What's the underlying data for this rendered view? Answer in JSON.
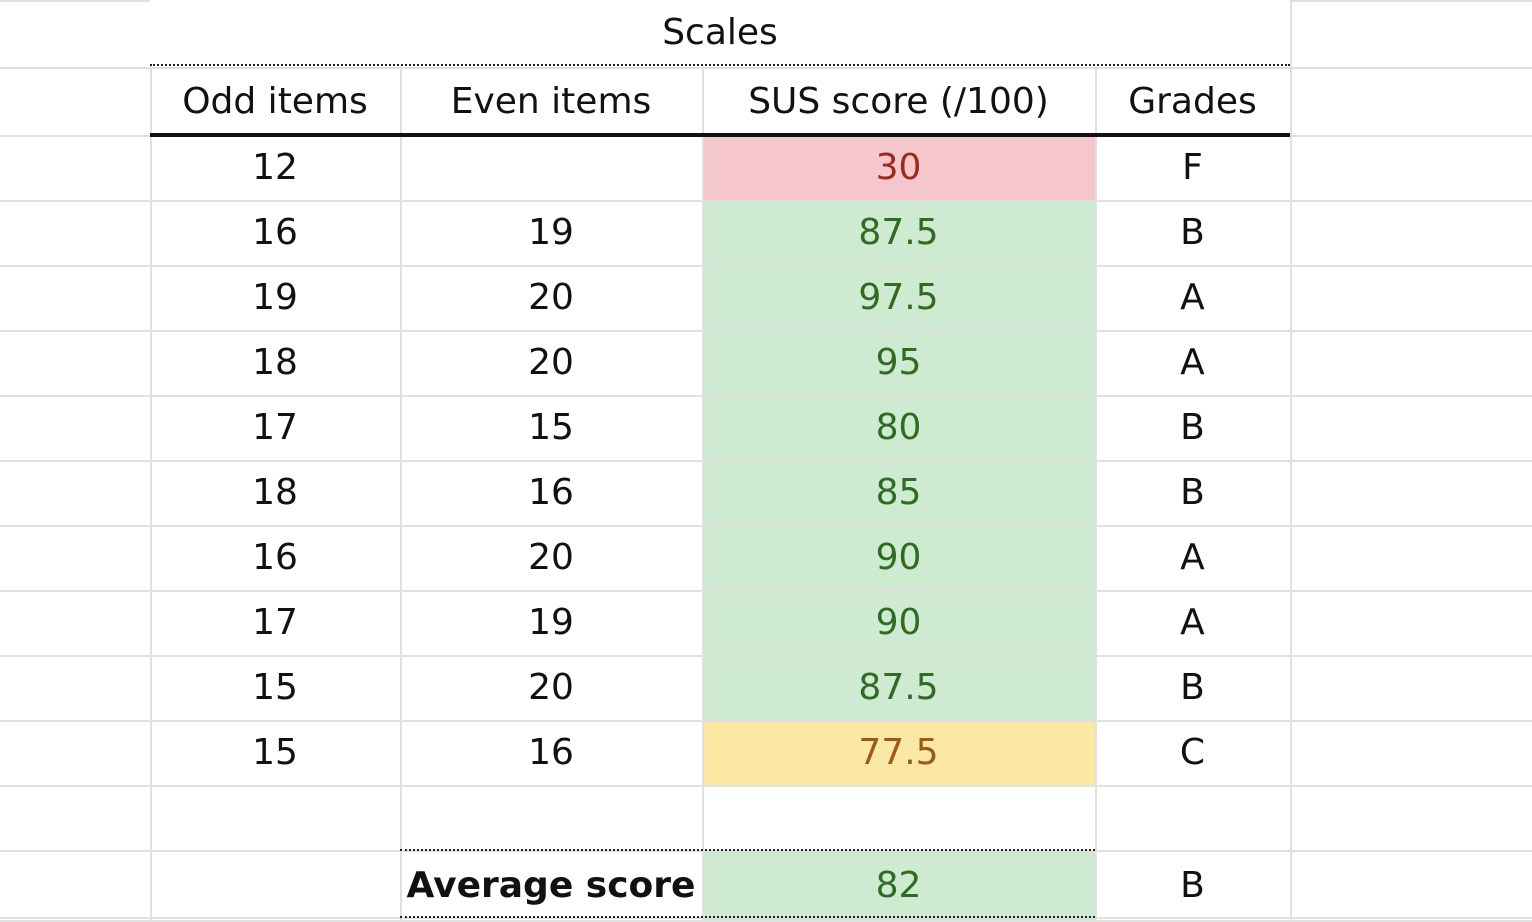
{
  "table": {
    "group_header": "Scales",
    "columns": [
      "Odd items",
      "Even items",
      "SUS score (/100)",
      "Grades"
    ],
    "rows": [
      {
        "odd": 12,
        "even": null,
        "score": 30,
        "grade": "F",
        "fill": "#f5c7cc",
        "ink": "#9c2a1a"
      },
      {
        "odd": 16,
        "even": 19,
        "score": 87.5,
        "grade": "B",
        "fill": "#ceebd1",
        "ink": "#2f6b21"
      },
      {
        "odd": 19,
        "even": 20,
        "score": 97.5,
        "grade": "A",
        "fill": "#ceebd1",
        "ink": "#2f6b21"
      },
      {
        "odd": 18,
        "even": 20,
        "score": 95,
        "grade": "A",
        "fill": "#ceebd1",
        "ink": "#2f6b21"
      },
      {
        "odd": 17,
        "even": 15,
        "score": 80,
        "grade": "B",
        "fill": "#ceebd1",
        "ink": "#2f6b21"
      },
      {
        "odd": 18,
        "even": 16,
        "score": 85,
        "grade": "B",
        "fill": "#ceebd1",
        "ink": "#2f6b21"
      },
      {
        "odd": 16,
        "even": 20,
        "score": 90,
        "grade": "A",
        "fill": "#ceebd1",
        "ink": "#2f6b21"
      },
      {
        "odd": 17,
        "even": 19,
        "score": 90,
        "grade": "A",
        "fill": "#ceebd1",
        "ink": "#2f6b21"
      },
      {
        "odd": 15,
        "even": 20,
        "score": 87.5,
        "grade": "B",
        "fill": "#ceebd1",
        "ink": "#2f6b21"
      },
      {
        "odd": 15,
        "even": 16,
        "score": 77.5,
        "grade": "C",
        "fill": "#fbe8a5",
        "ink": "#9c5a16"
      }
    ],
    "average": {
      "label": "Average score",
      "score": 82,
      "grade": "B",
      "fill": "#ceebd1",
      "ink": "#2f6b21"
    }
  }
}
